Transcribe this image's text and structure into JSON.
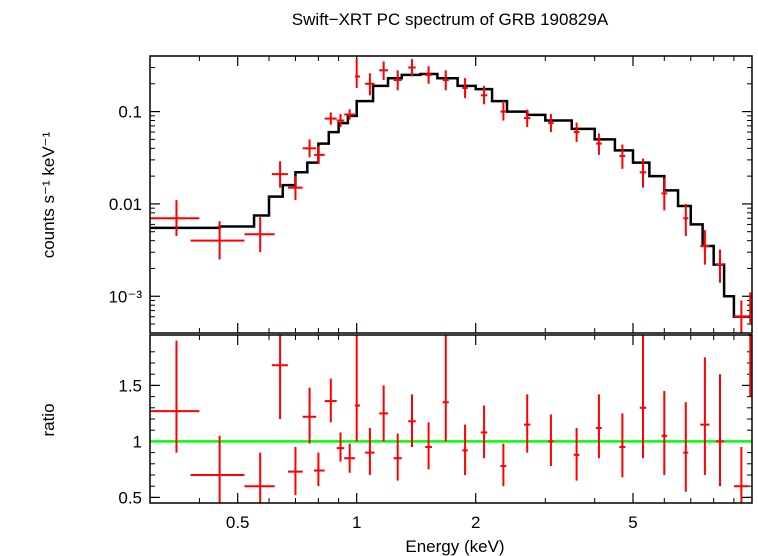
{
  "chart_data": {
    "type": "scatter",
    "title": "Swift−XRT PC spectrum of GRB 190829A",
    "xlabel": "Energy (keV)",
    "x_scale": "log",
    "xlim": [
      0.3,
      10
    ],
    "x_ticks": [
      {
        "value": 0.5,
        "label": "0.5"
      },
      {
        "value": 1,
        "label": "1"
      },
      {
        "value": 2,
        "label": "2"
      },
      {
        "value": 5,
        "label": "5"
      }
    ],
    "colors": {
      "data": "#ff0000",
      "model": "#000000",
      "unity": "#00ff00"
    },
    "panels": [
      {
        "name": "spectrum",
        "ylabel": "counts s⁻¹ keV⁻¹",
        "y_scale": "log",
        "ylim": [
          0.0004,
          0.4
        ],
        "y_ticks": [
          {
            "value": 0.1,
            "label": "0.1"
          },
          {
            "value": 0.01,
            "label": "0.01"
          },
          {
            "value": 0.001,
            "label": "10⁻³"
          }
        ],
        "model": {
          "name": "model",
          "x": [
            0.3,
            0.45,
            0.55,
            0.6,
            0.65,
            0.7,
            0.75,
            0.8,
            0.85,
            0.9,
            0.95,
            1.0,
            1.1,
            1.2,
            1.3,
            1.45,
            1.6,
            1.8,
            2.0,
            2.2,
            2.4,
            2.7,
            3.0,
            3.5,
            4.0,
            4.5,
            5.0,
            5.5,
            6.0,
            6.5,
            7.0,
            7.5,
            8.0,
            8.5,
            9.0,
            10.0
          ],
          "y": [
            0.0055,
            0.0057,
            0.0075,
            0.012,
            0.016,
            0.022,
            0.028,
            0.045,
            0.06,
            0.075,
            0.09,
            0.13,
            0.19,
            0.23,
            0.25,
            0.255,
            0.23,
            0.19,
            0.175,
            0.13,
            0.1,
            0.092,
            0.08,
            0.065,
            0.05,
            0.038,
            0.028,
            0.02,
            0.014,
            0.0095,
            0.006,
            0.0035,
            0.0022,
            0.001,
            0.0006,
            0.0006
          ]
        },
        "points": [
          {
            "x": 0.35,
            "xerr": [
              0.3,
              0.4
            ],
            "y": 0.007,
            "yerr": [
              0.0045,
              0.011
            ]
          },
          {
            "x": 0.45,
            "xerr": [
              0.38,
              0.52
            ],
            "y": 0.004,
            "yerr": [
              0.0025,
              0.0065
            ]
          },
          {
            "x": 0.57,
            "xerr": [
              0.52,
              0.62
            ],
            "y": 0.0047,
            "yerr": [
              0.003,
              0.0072
            ]
          },
          {
            "x": 0.64,
            "xerr": [
              0.61,
              0.67
            ],
            "y": 0.021,
            "yerr": [
              0.015,
              0.029
            ]
          },
          {
            "x": 0.7,
            "xerr": [
              0.67,
              0.73
            ],
            "y": 0.015,
            "yerr": [
              0.011,
              0.02
            ]
          },
          {
            "x": 0.76,
            "xerr": [
              0.73,
              0.79
            ],
            "y": 0.04,
            "yerr": [
              0.032,
              0.05
            ]
          },
          {
            "x": 0.8,
            "xerr": [
              0.78,
              0.83
            ],
            "y": 0.034,
            "yerr": [
              0.027,
              0.042
            ]
          },
          {
            "x": 0.86,
            "xerr": [
              0.83,
              0.89
            ],
            "y": 0.084,
            "yerr": [
              0.072,
              0.098
            ]
          },
          {
            "x": 0.91,
            "xerr": [
              0.89,
              0.93
            ],
            "y": 0.08,
            "yerr": [
              0.068,
              0.094
            ]
          },
          {
            "x": 0.96,
            "xerr": [
              0.93,
              0.99
            ],
            "y": 0.093,
            "yerr": [
              0.082,
              0.106
            ]
          },
          {
            "x": 1.0,
            "xerr": [
              0.99,
              1.02
            ],
            "y": 0.24,
            "yerr": [
              0.18,
              0.37
            ]
          },
          {
            "x": 1.08,
            "xerr": [
              1.05,
              1.11
            ],
            "y": 0.2,
            "yerr": [
              0.15,
              0.26
            ]
          },
          {
            "x": 1.17,
            "xerr": [
              1.14,
              1.2
            ],
            "y": 0.28,
            "yerr": [
              0.22,
              0.35
            ]
          },
          {
            "x": 1.27,
            "xerr": [
              1.24,
              1.3
            ],
            "y": 0.22,
            "yerr": [
              0.17,
              0.28
            ]
          },
          {
            "x": 1.38,
            "xerr": [
              1.35,
              1.41
            ],
            "y": 0.3,
            "yerr": [
              0.24,
              0.37
            ]
          },
          {
            "x": 1.52,
            "xerr": [
              1.49,
              1.55
            ],
            "y": 0.25,
            "yerr": [
              0.2,
              0.31
            ]
          },
          {
            "x": 1.68,
            "xerr": [
              1.65,
              1.71
            ],
            "y": 0.22,
            "yerr": [
              0.17,
              0.28
            ]
          },
          {
            "x": 1.88,
            "xerr": [
              1.85,
              1.91
            ],
            "y": 0.18,
            "yerr": [
              0.14,
              0.23
            ]
          },
          {
            "x": 2.1,
            "xerr": [
              2.06,
              2.14
            ],
            "y": 0.15,
            "yerr": [
              0.12,
              0.19
            ]
          },
          {
            "x": 2.35,
            "xerr": [
              2.31,
              2.39
            ],
            "y": 0.1,
            "yerr": [
              0.08,
              0.13
            ]
          },
          {
            "x": 2.7,
            "xerr": [
              2.65,
              2.75
            ],
            "y": 0.085,
            "yerr": [
              0.068,
              0.105
            ]
          },
          {
            "x": 3.1,
            "xerr": [
              3.05,
              3.15
            ],
            "y": 0.075,
            "yerr": [
              0.06,
              0.094
            ]
          },
          {
            "x": 3.6,
            "xerr": [
              3.54,
              3.66
            ],
            "y": 0.06,
            "yerr": [
              0.047,
              0.076
            ]
          },
          {
            "x": 4.1,
            "xerr": [
              4.03,
              4.17
            ],
            "y": 0.045,
            "yerr": [
              0.034,
              0.058
            ]
          },
          {
            "x": 4.7,
            "xerr": [
              4.62,
              4.78
            ],
            "y": 0.033,
            "yerr": [
              0.024,
              0.044
            ]
          },
          {
            "x": 5.3,
            "xerr": [
              5.2,
              5.4
            ],
            "y": 0.022,
            "yerr": [
              0.015,
              0.031
            ]
          },
          {
            "x": 6.0,
            "xerr": [
              5.9,
              6.1
            ],
            "y": 0.013,
            "yerr": [
              0.0085,
              0.019
            ]
          },
          {
            "x": 6.8,
            "xerr": [
              6.7,
              6.9
            ],
            "y": 0.007,
            "yerr": [
              0.0045,
              0.01
            ]
          },
          {
            "x": 7.6,
            "xerr": [
              7.4,
              7.8
            ],
            "y": 0.0035,
            "yerr": [
              0.0022,
              0.0052
            ]
          },
          {
            "x": 8.3,
            "xerr": [
              8.1,
              8.5
            ],
            "y": 0.0022,
            "yerr": [
              0.0014,
              0.0032
            ]
          },
          {
            "x": 9.4,
            "xerr": [
              9.0,
              9.8
            ],
            "y": 0.0006,
            "yerr": [
              0.0004,
              0.0009
            ]
          },
          {
            "x": 9.9,
            "xerr": [
              9.8,
              10.0
            ],
            "y": 0.0008,
            "yerr": [
              0.0005,
              0.0011
            ]
          }
        ]
      },
      {
        "name": "ratio",
        "ylabel": "ratio",
        "y_scale": "linear",
        "ylim": [
          0.45,
          1.95
        ],
        "y_ticks": [
          {
            "value": 0.5,
            "label": "0.5"
          },
          {
            "value": 1,
            "label": "1"
          },
          {
            "value": 1.5,
            "label": "1.5"
          }
        ],
        "reference_line": 1,
        "points": [
          {
            "x": 0.35,
            "xerr": [
              0.3,
              0.4
            ],
            "y": 1.27,
            "yerr": [
              0.9,
              1.9
            ]
          },
          {
            "x": 0.45,
            "xerr": [
              0.38,
              0.52
            ],
            "y": 0.7,
            "yerr": [
              0.45,
              1.05
            ]
          },
          {
            "x": 0.57,
            "xerr": [
              0.52,
              0.62
            ],
            "y": 0.6,
            "yerr": [
              0.45,
              0.9
            ]
          },
          {
            "x": 0.64,
            "xerr": [
              0.61,
              0.67
            ],
            "y": 1.68,
            "yerr": [
              1.2,
              1.95
            ]
          },
          {
            "x": 0.7,
            "xerr": [
              0.67,
              0.73
            ],
            "y": 0.73,
            "yerr": [
              0.52,
              0.95
            ]
          },
          {
            "x": 0.76,
            "xerr": [
              0.73,
              0.79
            ],
            "y": 1.22,
            "yerr": [
              0.98,
              1.48
            ]
          },
          {
            "x": 0.8,
            "xerr": [
              0.78,
              0.83
            ],
            "y": 0.74,
            "yerr": [
              0.6,
              0.9
            ]
          },
          {
            "x": 0.86,
            "xerr": [
              0.83,
              0.89
            ],
            "y": 1.36,
            "yerr": [
              1.17,
              1.56
            ]
          },
          {
            "x": 0.91,
            "xerr": [
              0.89,
              0.93
            ],
            "y": 0.94,
            "yerr": [
              0.82,
              1.08
            ]
          },
          {
            "x": 0.96,
            "xerr": [
              0.93,
              0.99
            ],
            "y": 0.85,
            "yerr": [
              0.72,
              0.98
            ]
          },
          {
            "x": 1.0,
            "xerr": [
              0.99,
              1.02
            ],
            "y": 1.32,
            "yerr": [
              1.0,
              1.95
            ]
          },
          {
            "x": 1.08,
            "xerr": [
              1.05,
              1.11
            ],
            "y": 0.9,
            "yerr": [
              0.7,
              1.12
            ]
          },
          {
            "x": 1.17,
            "xerr": [
              1.14,
              1.2
            ],
            "y": 1.25,
            "yerr": [
              1.0,
              1.5
            ]
          },
          {
            "x": 1.27,
            "xerr": [
              1.24,
              1.3
            ],
            "y": 0.85,
            "yerr": [
              0.65,
              1.07
            ]
          },
          {
            "x": 1.38,
            "xerr": [
              1.35,
              1.41
            ],
            "y": 1.18,
            "yerr": [
              0.95,
              1.42
            ]
          },
          {
            "x": 1.52,
            "xerr": [
              1.49,
              1.55
            ],
            "y": 0.95,
            "yerr": [
              0.75,
              1.17
            ]
          },
          {
            "x": 1.68,
            "xerr": [
              1.65,
              1.71
            ],
            "y": 1.35,
            "yerr": [
              1.0,
              1.95
            ]
          },
          {
            "x": 1.88,
            "xerr": [
              1.85,
              1.91
            ],
            "y": 0.92,
            "yerr": [
              0.7,
              1.15
            ]
          },
          {
            "x": 2.1,
            "xerr": [
              2.06,
              2.14
            ],
            "y": 1.08,
            "yerr": [
              0.85,
              1.32
            ]
          },
          {
            "x": 2.35,
            "xerr": [
              2.31,
              2.39
            ],
            "y": 0.78,
            "yerr": [
              0.6,
              0.98
            ]
          },
          {
            "x": 2.7,
            "xerr": [
              2.65,
              2.75
            ],
            "y": 1.15,
            "yerr": [
              0.9,
              1.42
            ]
          },
          {
            "x": 3.1,
            "xerr": [
              3.05,
              3.15
            ],
            "y": 1.0,
            "yerr": [
              0.78,
              1.24
            ]
          },
          {
            "x": 3.6,
            "xerr": [
              3.54,
              3.66
            ],
            "y": 0.88,
            "yerr": [
              0.65,
              1.12
            ]
          },
          {
            "x": 4.1,
            "xerr": [
              4.03,
              4.17
            ],
            "y": 1.12,
            "yerr": [
              0.85,
              1.42
            ]
          },
          {
            "x": 4.7,
            "xerr": [
              4.62,
              4.78
            ],
            "y": 0.95,
            "yerr": [
              0.68,
              1.25
            ]
          },
          {
            "x": 5.3,
            "xerr": [
              5.2,
              5.4
            ],
            "y": 1.3,
            "yerr": [
              0.85,
              1.95
            ]
          },
          {
            "x": 6.0,
            "xerr": [
              5.9,
              6.1
            ],
            "y": 1.05,
            "yerr": [
              0.7,
              1.45
            ]
          },
          {
            "x": 6.8,
            "xerr": [
              6.7,
              6.9
            ],
            "y": 0.9,
            "yerr": [
              0.55,
              1.35
            ]
          },
          {
            "x": 7.6,
            "xerr": [
              7.4,
              7.8
            ],
            "y": 1.15,
            "yerr": [
              0.7,
              1.75
            ]
          },
          {
            "x": 8.3,
            "xerr": [
              8.1,
              8.5
            ],
            "y": 1.0,
            "yerr": [
              0.6,
              1.6
            ]
          },
          {
            "x": 9.4,
            "xerr": [
              9.0,
              9.8
            ],
            "y": 0.6,
            "yerr": [
              0.45,
              0.95
            ]
          },
          {
            "x": 9.9,
            "xerr": [
              9.8,
              10.0
            ],
            "y": 1.95,
            "yerr": [
              1.4,
              1.95
            ]
          }
        ]
      }
    ]
  }
}
